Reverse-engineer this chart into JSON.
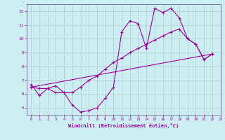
{
  "xlabel": "Windchill (Refroidissement éolien,°C)",
  "xlim": [
    -0.5,
    23
  ],
  "ylim": [
    4.5,
    12.5
  ],
  "xticks": [
    0,
    1,
    2,
    3,
    4,
    5,
    6,
    7,
    8,
    9,
    10,
    11,
    12,
    13,
    14,
    15,
    16,
    17,
    18,
    19,
    20,
    21,
    22,
    23
  ],
  "yticks": [
    5,
    6,
    7,
    8,
    9,
    10,
    11,
    12
  ],
  "bg_color": "#cceef2",
  "line_color": "#990099",
  "grid_color": "#aabbcc",
  "line1_x": [
    0,
    1,
    2,
    3,
    4,
    5,
    6,
    7,
    8,
    9,
    10,
    11,
    12,
    13,
    14,
    15,
    16,
    17,
    18,
    19,
    20,
    21,
    22
  ],
  "line1_y": [
    6.7,
    5.9,
    6.4,
    6.1,
    6.1,
    5.2,
    4.7,
    4.8,
    5.0,
    5.7,
    6.5,
    10.5,
    11.3,
    11.1,
    9.3,
    12.2,
    11.9,
    12.2,
    11.5,
    10.0,
    9.6,
    8.5,
    8.9
  ],
  "line2_x": [
    0,
    1,
    2,
    3,
    4,
    5,
    6,
    7,
    8,
    9,
    10,
    11,
    12,
    13,
    14,
    15,
    16,
    17,
    18,
    19,
    20,
    21,
    22
  ],
  "line2_y": [
    6.5,
    6.4,
    6.4,
    6.6,
    6.1,
    6.1,
    6.5,
    7.0,
    7.3,
    7.8,
    8.3,
    8.6,
    9.0,
    9.3,
    9.6,
    9.9,
    10.2,
    10.5,
    10.7,
    10.0,
    9.6,
    8.5,
    8.9
  ],
  "line3_x": [
    0,
    22
  ],
  "line3_y": [
    6.5,
    8.9
  ]
}
